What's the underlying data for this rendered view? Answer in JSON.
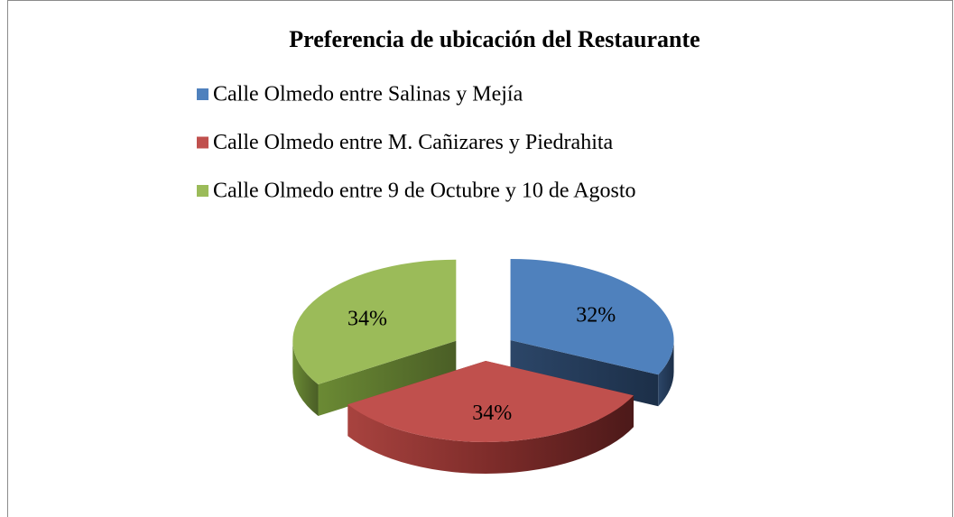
{
  "chart_data": {
    "type": "pie",
    "title": "Preferencia de ubicación del Restaurante",
    "categories": [
      "Calle Olmedo entre Salinas y Mejía",
      "Calle Olmedo entre M. Cañizares y Piedrahita",
      "Calle Olmedo entre 9 de Octubre y 10 de Agosto"
    ],
    "values": [
      32,
      34,
      34
    ],
    "value_labels": [
      "32%",
      "34%",
      "34%"
    ],
    "colors": [
      "#4f81bd",
      "#c0504d",
      "#9bbb59"
    ],
    "legend": "top"
  }
}
